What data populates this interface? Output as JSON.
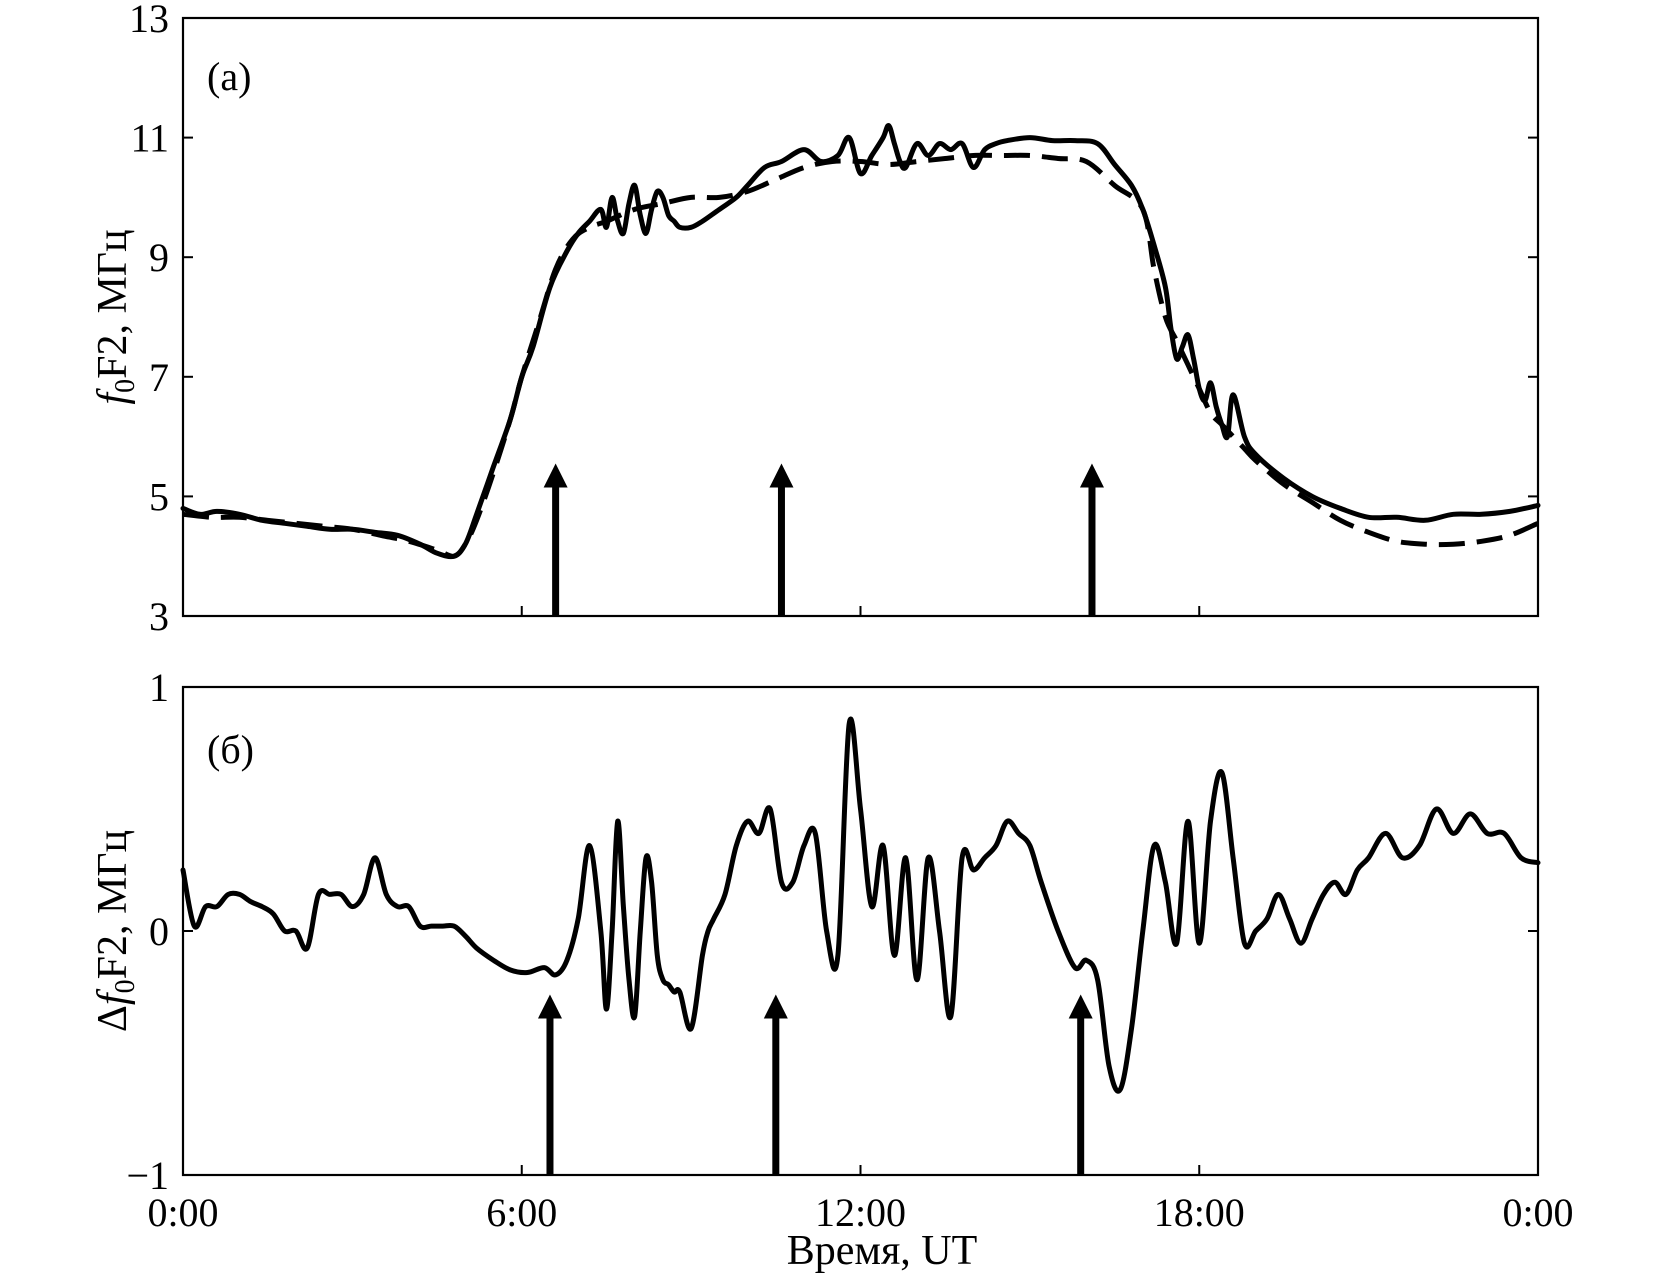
{
  "x_axis": {
    "title": "Время, UT",
    "ticks": [
      "0:00",
      "6:00",
      "12:00",
      "18:00",
      "0:00"
    ],
    "tick_hours": [
      0,
      6,
      12,
      18,
      24
    ],
    "range_hours": [
      0,
      24
    ]
  },
  "chart_data": [
    {
      "type": "line",
      "panel_label": "(a)",
      "ylabel_text": "F2, МГц",
      "ylabel_var": "f",
      "ylabel_sub": "0",
      "ylim": [
        3,
        13
      ],
      "yticks": [
        "3",
        "5",
        "7",
        "9",
        "11",
        "13"
      ],
      "ytick_values": [
        3,
        5,
        7,
        9,
        11,
        13
      ],
      "series": [
        {
          "style": "solid",
          "x": [
            0,
            0.3,
            0.6,
            1.0,
            1.4,
            1.8,
            2.2,
            2.6,
            3.0,
            3.4,
            3.8,
            4.2,
            4.5,
            4.8,
            5.0,
            5.2,
            5.5,
            5.8,
            6.0,
            6.2,
            6.5,
            6.8,
            7.0,
            7.2,
            7.4,
            7.5,
            7.6,
            7.7,
            7.8,
            7.9,
            8.0,
            8.1,
            8.2,
            8.3,
            8.4,
            8.5,
            8.6,
            8.7,
            8.8,
            9.0,
            9.2,
            9.5,
            9.8,
            10.0,
            10.3,
            10.6,
            11.0,
            11.3,
            11.6,
            11.8,
            12.0,
            12.2,
            12.4,
            12.5,
            12.6,
            12.7,
            12.8,
            13.0,
            13.2,
            13.4,
            13.6,
            13.8,
            14.0,
            14.2,
            14.4,
            14.6,
            15.0,
            15.4,
            15.8,
            16.2,
            16.5,
            16.8,
            17.0,
            17.2,
            17.4,
            17.5,
            17.6,
            17.7,
            17.8,
            17.9,
            18.0,
            18.1,
            18.2,
            18.3,
            18.4,
            18.5,
            18.6,
            18.8,
            19.0,
            19.5,
            20.0,
            20.5,
            21.0,
            21.5,
            22.0,
            22.5,
            23.0,
            23.5,
            24.0
          ],
          "values": [
            4.8,
            4.7,
            4.75,
            4.7,
            4.6,
            4.55,
            4.5,
            4.45,
            4.45,
            4.4,
            4.35,
            4.2,
            4.05,
            4.0,
            4.2,
            4.7,
            5.5,
            6.3,
            7.0,
            7.5,
            8.5,
            9.1,
            9.4,
            9.6,
            9.8,
            9.5,
            10.0,
            9.6,
            9.4,
            9.9,
            10.2,
            9.7,
            9.4,
            9.8,
            10.1,
            10.0,
            9.7,
            9.6,
            9.5,
            9.5,
            9.6,
            9.8,
            10.0,
            10.2,
            10.5,
            10.6,
            10.8,
            10.6,
            10.7,
            11.0,
            10.4,
            10.7,
            11.0,
            11.2,
            10.9,
            10.6,
            10.5,
            10.9,
            10.7,
            10.9,
            10.8,
            10.9,
            10.5,
            10.8,
            10.9,
            10.95,
            11.0,
            10.95,
            10.95,
            10.9,
            10.55,
            10.2,
            9.8,
            9.2,
            8.5,
            7.8,
            7.3,
            7.5,
            7.7,
            7.3,
            6.8,
            6.6,
            6.9,
            6.5,
            6.2,
            6.0,
            6.7,
            6.0,
            5.7,
            5.3,
            5.0,
            4.8,
            4.65,
            4.65,
            4.6,
            4.7,
            4.7,
            4.75,
            4.85
          ]
        },
        {
          "style": "dashed",
          "x": [
            0,
            0.5,
            1.0,
            1.5,
            2.0,
            2.5,
            3.0,
            3.5,
            4.0,
            4.5,
            4.8,
            5.0,
            5.2,
            5.5,
            5.8,
            6.0,
            6.3,
            6.6,
            6.9,
            7.2,
            7.5,
            8.0,
            8.5,
            9.0,
            9.5,
            10.0,
            10.5,
            11.0,
            11.5,
            12.0,
            12.5,
            13.0,
            13.5,
            14.0,
            14.5,
            15.0,
            15.5,
            16.0,
            16.5,
            17.0,
            17.2,
            17.4,
            17.6,
            17.8,
            18.0,
            18.2,
            18.4,
            18.6,
            18.8,
            19.0,
            19.5,
            20.0,
            20.5,
            21.0,
            21.5,
            22.0,
            22.5,
            23.0,
            23.5,
            24.0
          ],
          "values": [
            4.7,
            4.65,
            4.65,
            4.6,
            4.55,
            4.5,
            4.45,
            4.35,
            4.25,
            4.1,
            4.0,
            4.2,
            4.6,
            5.4,
            6.3,
            7.0,
            7.9,
            8.8,
            9.3,
            9.5,
            9.6,
            9.8,
            9.9,
            10.0,
            10.0,
            10.1,
            10.3,
            10.5,
            10.6,
            10.6,
            10.55,
            10.6,
            10.65,
            10.7,
            10.7,
            10.7,
            10.65,
            10.6,
            10.2,
            9.8,
            8.8,
            8.0,
            7.6,
            7.2,
            6.8,
            6.4,
            6.2,
            6.0,
            5.8,
            5.6,
            5.2,
            4.9,
            4.6,
            4.4,
            4.25,
            4.2,
            4.2,
            4.25,
            4.35,
            4.55
          ]
        }
      ],
      "arrows_at_hours": [
        6.6,
        10.6,
        16.1
      ]
    },
    {
      "type": "line",
      "panel_label": "(б)",
      "ylabel_text": "F2, МГц",
      "ylabel_var": "f",
      "ylabel_sub": "0",
      "ylabel_prefix": "Δ",
      "ylim": [
        -1,
        1
      ],
      "yticks": [
        "−1",
        "0",
        "1"
      ],
      "ytick_values": [
        -1,
        0,
        1
      ],
      "series": [
        {
          "style": "solid",
          "x": [
            0,
            0.2,
            0.4,
            0.6,
            0.8,
            1.0,
            1.2,
            1.4,
            1.6,
            1.8,
            2.0,
            2.2,
            2.4,
            2.6,
            2.8,
            3.0,
            3.2,
            3.4,
            3.6,
            3.8,
            4.0,
            4.2,
            4.4,
            4.6,
            4.8,
            5.0,
            5.2,
            5.5,
            5.8,
            6.1,
            6.4,
            6.6,
            6.8,
            7.0,
            7.2,
            7.4,
            7.5,
            7.6,
            7.7,
            7.8,
            7.9,
            8.0,
            8.1,
            8.2,
            8.3,
            8.4,
            8.5,
            8.6,
            8.7,
            8.8,
            9.0,
            9.2,
            9.3,
            9.4,
            9.6,
            9.8,
            10.0,
            10.2,
            10.4,
            10.6,
            10.8,
            11.0,
            11.2,
            11.4,
            11.6,
            11.8,
            12.0,
            12.2,
            12.4,
            12.6,
            12.8,
            13.0,
            13.2,
            13.4,
            13.6,
            13.8,
            14.0,
            14.2,
            14.4,
            14.6,
            14.8,
            15.0,
            15.2,
            15.5,
            15.8,
            16.0,
            16.2,
            16.4,
            16.6,
            16.8,
            17.0,
            17.2,
            17.4,
            17.6,
            17.8,
            18.0,
            18.2,
            18.4,
            18.6,
            18.8,
            19.0,
            19.2,
            19.4,
            19.6,
            19.8,
            20.0,
            20.2,
            20.4,
            20.6,
            20.8,
            21.0,
            21.3,
            21.6,
            21.9,
            22.2,
            22.5,
            22.8,
            23.1,
            23.4,
            23.7,
            24.0
          ],
          "values": [
            0.25,
            0.02,
            0.1,
            0.1,
            0.15,
            0.15,
            0.12,
            0.1,
            0.07,
            0.0,
            0.0,
            -0.07,
            0.15,
            0.15,
            0.15,
            0.1,
            0.15,
            0.3,
            0.15,
            0.1,
            0.1,
            0.02,
            0.02,
            0.02,
            0.02,
            -0.02,
            -0.07,
            -0.12,
            -0.16,
            -0.17,
            -0.15,
            -0.18,
            -0.12,
            0.05,
            0.35,
            0.0,
            -0.32,
            0.0,
            0.45,
            0.1,
            -0.2,
            -0.35,
            0.0,
            0.3,
            0.2,
            -0.1,
            -0.2,
            -0.22,
            -0.25,
            -0.25,
            -0.4,
            -0.1,
            0.0,
            0.05,
            0.15,
            0.35,
            0.45,
            0.4,
            0.5,
            0.2,
            0.2,
            0.35,
            0.4,
            0.0,
            -0.1,
            0.85,
            0.5,
            0.1,
            0.35,
            -0.1,
            0.3,
            -0.2,
            0.3,
            0.0,
            -0.35,
            0.3,
            0.25,
            0.3,
            0.35,
            0.45,
            0.4,
            0.35,
            0.2,
            0.0,
            -0.15,
            -0.12,
            -0.2,
            -0.55,
            -0.65,
            -0.4,
            0.0,
            0.35,
            0.2,
            -0.05,
            0.45,
            -0.05,
            0.45,
            0.65,
            0.3,
            -0.05,
            0.0,
            0.05,
            0.15,
            0.05,
            -0.05,
            0.05,
            0.15,
            0.2,
            0.15,
            0.25,
            0.3,
            0.4,
            0.3,
            0.35,
            0.5,
            0.4,
            0.48,
            0.4,
            0.4,
            0.3,
            0.28
          ]
        }
      ],
      "arrows_at_hours": [
        6.5,
        10.5,
        15.9
      ]
    }
  ]
}
